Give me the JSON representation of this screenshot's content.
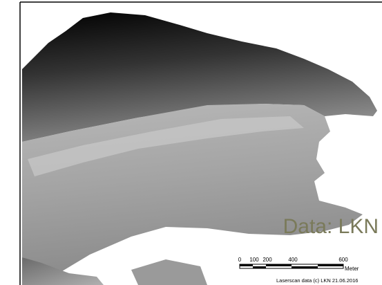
{
  "annotation": "Data: LKN",
  "scale_bar": {
    "labels": [
      "0",
      "100",
      "200",
      "400",
      "600"
    ],
    "unit": "Meter"
  },
  "credit": "Laserscan data (c) LKN 21.06.2016"
}
